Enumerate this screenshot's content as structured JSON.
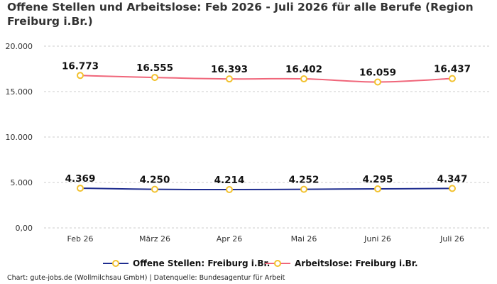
{
  "title": "Offene Stellen und Arbeitslose: Feb 2026 - Juli 2026 für alle Berufe (Region Freiburg i.Br.)",
  "footer": "Chart: gute-jobs.de (Wollmilchsau GmbH) | Datenquelle: Bundesagentur für Arbeit",
  "colors": {
    "offene_stellen": "#1f2d8f",
    "arbeitslose": "#f0667a",
    "marker_stroke": "#f2c12e",
    "grid": "#cccccc"
  },
  "chart_data": {
    "type": "line",
    "title": "Offene Stellen und Arbeitslose: Feb 2026 - Juli 2026 für alle Berufe (Region Freiburg i.Br.)",
    "categories": [
      "Feb 26",
      "März 26",
      "Apr 26",
      "Mai 26",
      "Juni 26",
      "Juli 26"
    ],
    "ylim": [
      0,
      20000
    ],
    "yticks": [
      0,
      5000,
      10000,
      15000,
      20000
    ],
    "ytick_labels": [
      "0,00",
      "5.000",
      "10.000",
      "15.000",
      "20.000"
    ],
    "grid": true,
    "legend_position": "bottom",
    "series": [
      {
        "key": "offene_stellen",
        "name": "Offene Stellen: Freiburg i.Br.",
        "values": [
          4369,
          4250,
          4214,
          4252,
          4295,
          4347
        ],
        "labels": [
          "4.369",
          "4.250",
          "4.214",
          "4.252",
          "4.295",
          "4.347"
        ]
      },
      {
        "key": "arbeitslose",
        "name": "Arbeitslose: Freiburg i.Br.",
        "values": [
          16773,
          16555,
          16393,
          16402,
          16059,
          16437
        ],
        "labels": [
          "16.773",
          "16.555",
          "16.393",
          "16.402",
          "16.059",
          "16.437"
        ]
      }
    ]
  }
}
